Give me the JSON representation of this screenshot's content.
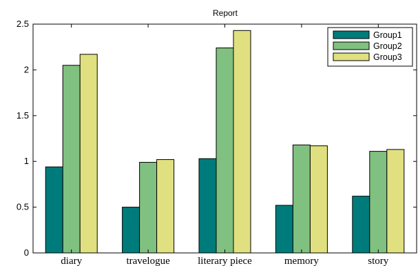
{
  "chart_data": {
    "type": "bar",
    "title": "Report",
    "categories": [
      "diary",
      "travelogue",
      "literary piece",
      "memory",
      "story"
    ],
    "series": [
      {
        "name": "Group1",
        "color": "#007b7b",
        "values": [
          0.94,
          0.5,
          1.03,
          0.52,
          0.62
        ]
      },
      {
        "name": "Group2",
        "color": "#80c080",
        "values": [
          2.05,
          0.99,
          2.24,
          1.18,
          1.11
        ]
      },
      {
        "name": "Group3",
        "color": "#e0e080",
        "values": [
          2.17,
          1.02,
          2.43,
          1.17,
          1.13
        ]
      }
    ],
    "yticks": [
      "0",
      "0.5",
      "1",
      "1.5",
      "2",
      "2.5"
    ],
    "ylim": [
      0,
      2.5
    ],
    "xlabel": "",
    "ylabel": "",
    "grid": false,
    "legend_position": "top-right"
  }
}
